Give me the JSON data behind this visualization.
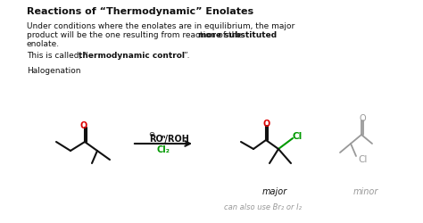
{
  "title": "Reactions of “Thermodynamic” Enolates",
  "line1": "Under conditions where the enolates are in equilibrium, the major",
  "line2a": "product will be the one resulting from reaction of the ",
  "line2b": "more substituted",
  "line3": "enolate.",
  "line4a": "This is called, “",
  "line4b": "thermodynamic control",
  "line4c": "”.",
  "halogenation": "Halogenation",
  "reagent_top": "RO",
  "reagent_neg": "⊖",
  "reagent_slash": "ⁿ/ROH",
  "reagent_bot": "Cl₂",
  "major_label": "major",
  "minor_label": "minor",
  "note": "can also use Br₂ or I₂",
  "red": "#dd0000",
  "green": "#009900",
  "gray": "#999999",
  "dark": "#111111",
  "white": "#ffffff"
}
